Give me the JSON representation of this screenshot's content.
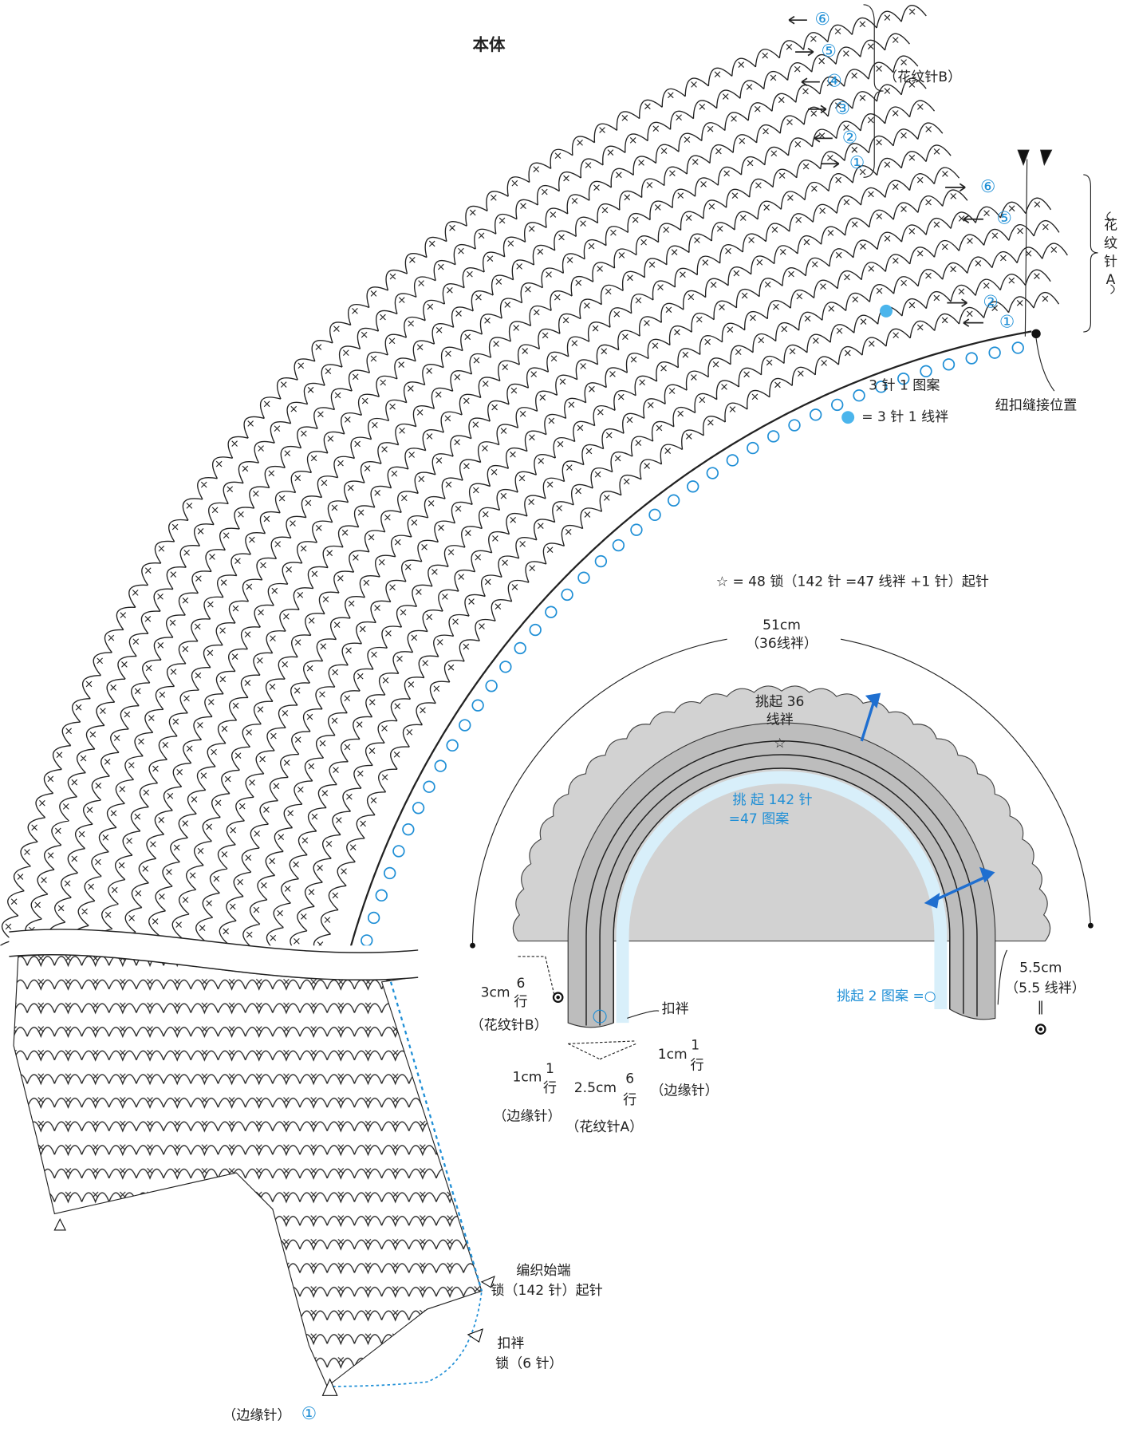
{
  "title": "本体",
  "pattern_b": {
    "label": "（花纹针B）",
    "rows": [
      "⑥",
      "⑤",
      "④",
      "③",
      "②",
      "①"
    ]
  },
  "pattern_a": {
    "label": [
      "花",
      "纹",
      "针",
      "A"
    ],
    "rows": [
      "⑥",
      "⑤",
      "②",
      "①"
    ]
  },
  "legend": {
    "motif": "3 针 1 图案",
    "loop": "= 3 针 1 线袢",
    "button": "纽扣缝接位置"
  },
  "foundation_note": "☆ = 48 锁（142 针 =47 线袢 +1 针）起针",
  "schematic": {
    "width": "51cm",
    "width_loops": "（36线袢）",
    "pick_top": [
      "挑起 36",
      "线袢"
    ],
    "star": "☆",
    "pick_inner": [
      "挑 起 142 针",
      "=47 图案"
    ],
    "side": "5.5cm",
    "side_loops": "（5.5 线袢）",
    "equal": "‖",
    "pick_end": "挑起 2 图案 =○",
    "height_b": "3cm",
    "rows_b": [
      "6",
      "行"
    ],
    "label_b": "（花纹针B）",
    "button_loop": "扣袢",
    "edge_left": {
      "size": "1cm",
      "rows": [
        "1",
        "行"
      ],
      "label": "（边缘针）"
    },
    "middle": {
      "size": "2.5cm",
      "rows": [
        "6",
        "行"
      ],
      "label": "（花纹针A）"
    },
    "edge_right": {
      "size": "1cm",
      "rows": [
        "1",
        "行"
      ],
      "label": "（边缘针）"
    }
  },
  "start": {
    "label": "编织始端",
    "chain": "锁（142 针）起针",
    "loop": "扣袢",
    "loop_chain": "锁（6 针）",
    "edge": "（边缘针）",
    "edge_row": "①"
  }
}
